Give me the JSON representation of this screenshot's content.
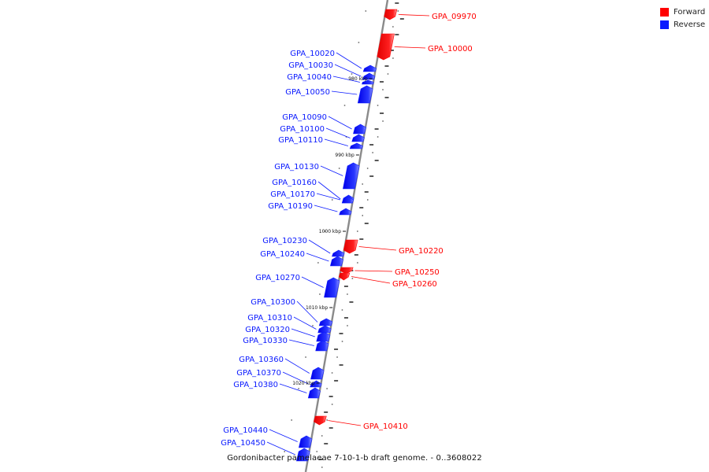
{
  "colors": {
    "forward": "#ff0000",
    "reverse": "#0a1aff",
    "axis": "#888888",
    "tick": "#111111"
  },
  "legend": [
    {
      "label": "Forward",
      "color": "#ff0000"
    },
    {
      "label": "Reverse",
      "color": "#0a1aff"
    }
  ],
  "caption": "Gordonibacter pamelaeae 7-10-1-b draft genome. - 0..3608022",
  "scale_labels": [
    "980 kbp",
    "990 kbp",
    "1000 kbp",
    "1010 kbp",
    "1020 kbp"
  ],
  "genes": [
    {
      "id": "GPA_09970",
      "strand": "forward"
    },
    {
      "id": "GPA_10000",
      "strand": "forward"
    },
    {
      "id": "GPA_10020",
      "strand": "reverse"
    },
    {
      "id": "GPA_10030",
      "strand": "reverse"
    },
    {
      "id": "GPA_10040",
      "strand": "reverse"
    },
    {
      "id": "GPA_10050",
      "strand": "reverse"
    },
    {
      "id": "GPA_10090",
      "strand": "reverse"
    },
    {
      "id": "GPA_10100",
      "strand": "reverse"
    },
    {
      "id": "GPA_10110",
      "strand": "reverse"
    },
    {
      "id": "GPA_10130",
      "strand": "reverse"
    },
    {
      "id": "GPA_10160",
      "strand": "reverse"
    },
    {
      "id": "GPA_10170",
      "strand": "reverse"
    },
    {
      "id": "GPA_10190",
      "strand": "reverse"
    },
    {
      "id": "GPA_10220",
      "strand": "forward"
    },
    {
      "id": "GPA_10230",
      "strand": "reverse"
    },
    {
      "id": "GPA_10240",
      "strand": "reverse"
    },
    {
      "id": "GPA_10250",
      "strand": "forward"
    },
    {
      "id": "GPA_10260",
      "strand": "forward"
    },
    {
      "id": "GPA_10270",
      "strand": "reverse"
    },
    {
      "id": "GPA_10300",
      "strand": "reverse"
    },
    {
      "id": "GPA_10310",
      "strand": "reverse"
    },
    {
      "id": "GPA_10320",
      "strand": "reverse"
    },
    {
      "id": "GPA_10330",
      "strand": "reverse"
    },
    {
      "id": "GPA_10360",
      "strand": "reverse"
    },
    {
      "id": "GPA_10370",
      "strand": "reverse"
    },
    {
      "id": "GPA_10380",
      "strand": "reverse"
    },
    {
      "id": "GPA_10410",
      "strand": "forward"
    },
    {
      "id": "GPA_10440",
      "strand": "reverse"
    },
    {
      "id": "GPA_10450",
      "strand": "reverse"
    }
  ]
}
